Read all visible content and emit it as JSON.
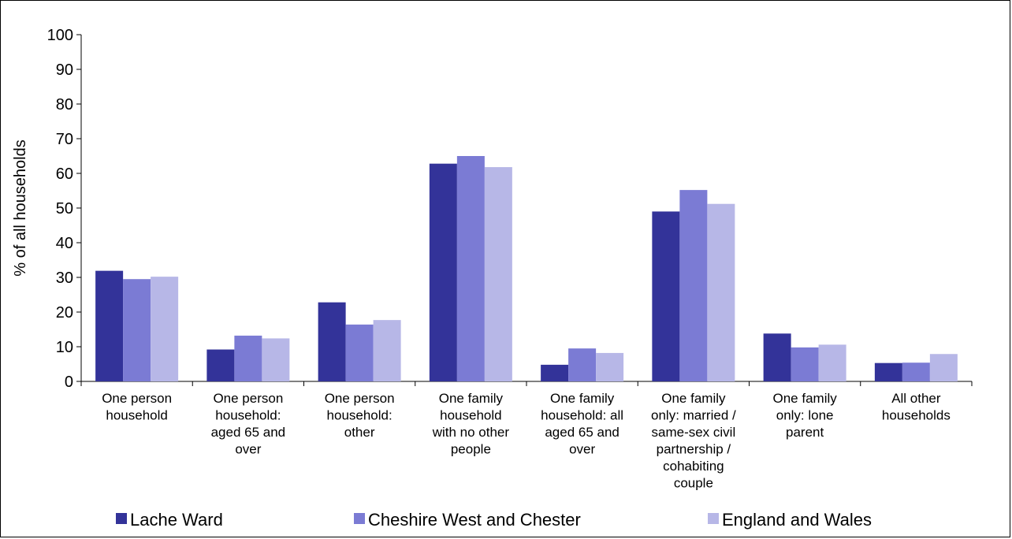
{
  "chart_data": {
    "type": "bar",
    "title": "",
    "xlabel": "",
    "ylabel": "% of all households",
    "ylim": [
      0,
      100
    ],
    "yticks": [
      0,
      10,
      20,
      30,
      40,
      50,
      60,
      70,
      80,
      90,
      100
    ],
    "grid": false,
    "legend_position": "bottom",
    "categories": [
      [
        "One person",
        "household"
      ],
      [
        "One person",
        "household:",
        "aged 65 and",
        "over"
      ],
      [
        "One person",
        "household:",
        "other"
      ],
      [
        "One family",
        "household",
        "with no other",
        "people"
      ],
      [
        "One family",
        "household: all",
        "aged 65 and",
        "over"
      ],
      [
        "One family",
        "only: married /",
        "same-sex civil",
        "partnership /",
        "cohabiting",
        "couple"
      ],
      [
        "One family",
        "only: lone",
        "parent"
      ],
      [
        "All other",
        "households"
      ]
    ],
    "series": [
      {
        "name": "Lache Ward",
        "color": "#333399",
        "values": [
          31.9,
          9.2,
          22.8,
          62.8,
          4.8,
          49.0,
          13.8,
          5.3
        ]
      },
      {
        "name": "Cheshire West and Chester",
        "color": "#7b7bd4",
        "values": [
          29.5,
          13.2,
          16.4,
          65.0,
          9.5,
          55.2,
          9.8,
          5.4
        ]
      },
      {
        "name": "England and Wales",
        "color": "#b7b7e7",
        "values": [
          30.2,
          12.4,
          17.7,
          61.8,
          8.2,
          51.2,
          10.6,
          7.9
        ]
      }
    ]
  }
}
